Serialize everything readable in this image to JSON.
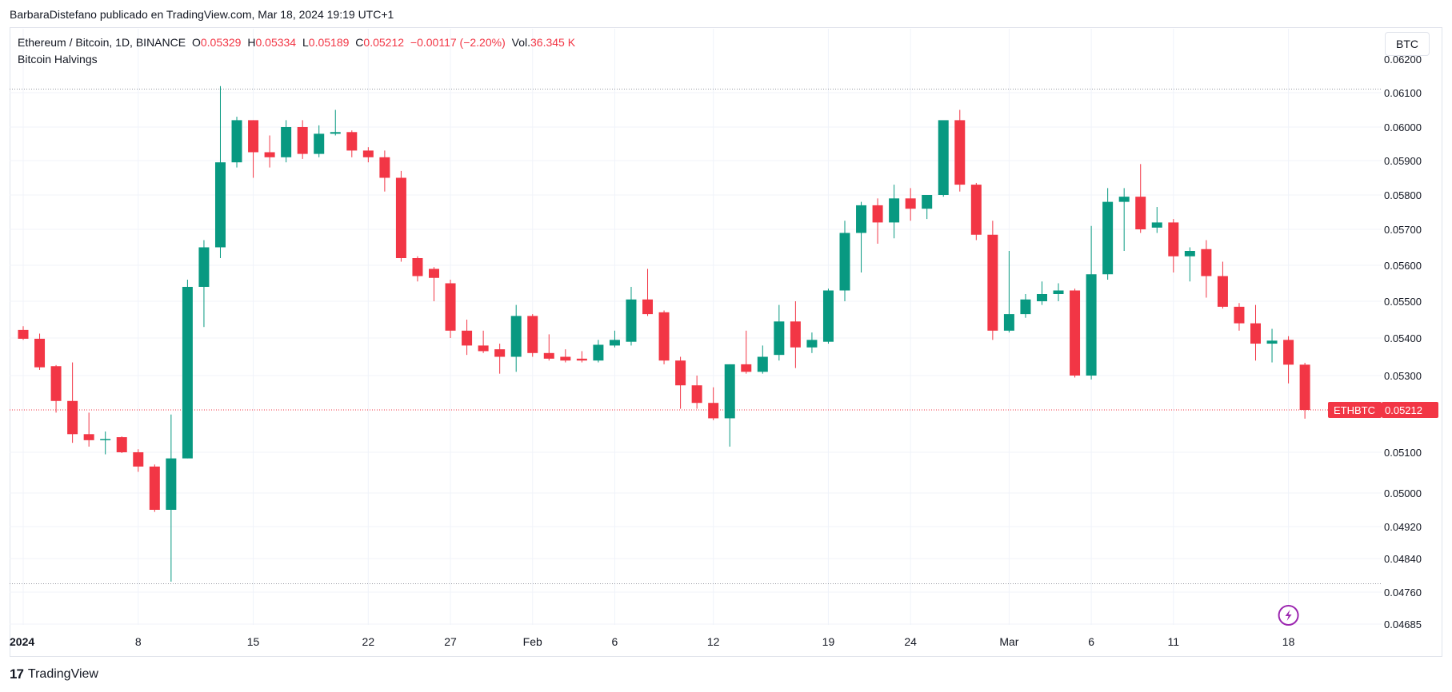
{
  "header": {
    "attribution": "BarbaraDistefano publicado en TradingView.com, Mar 18, 2024 19:19 UTC+1"
  },
  "legend": {
    "symbol": "Ethereum / Bitcoin, 1D, BINANCE",
    "o_label": "O",
    "o_value": "0.05329",
    "h_label": "H",
    "h_value": "0.05334",
    "l_label": "L",
    "l_value": "0.05189",
    "c_label": "C",
    "c_value": "0.05212",
    "change": "−0.00117 (−2.20%)",
    "vol_label": "Vol.",
    "vol_value": "36.345 K",
    "indicator": "Bitcoin Halvings"
  },
  "currency_button": "BTC",
  "footer": {
    "brand": "TradingView",
    "logo": "17"
  },
  "colors": {
    "up": "#089981",
    "down": "#f23645",
    "grid": "#f0f3fa",
    "dotted": "#9598a1",
    "halving_icon": "#9c27b0"
  },
  "icons": {
    "halving": "lightning-icon"
  },
  "chart_data": {
    "type": "candlestick",
    "symbol": "ETHBTC",
    "last_price": 0.05212,
    "last_price_label": "ETHBTC",
    "last_price_text": "0.05212",
    "y_ticks": [
      "0.06100",
      "0.06000",
      "0.05900",
      "0.05800",
      "0.05700",
      "0.05600",
      "0.05500",
      "0.05400",
      "0.05300",
      "0.05100",
      "0.05000",
      "0.04920",
      "0.04840",
      "0.04760",
      "0.04685"
    ],
    "y_tick_values": [
      0.061,
      0.06,
      0.059,
      0.058,
      0.057,
      0.056,
      0.055,
      0.054,
      0.053,
      0.051,
      0.05,
      0.0492,
      0.0484,
      0.0476,
      0.04685
    ],
    "y_partial_tick": "0.06200",
    "x_ticks": [
      {
        "label": "2024",
        "day": 0,
        "bold": true
      },
      {
        "label": "8",
        "day": 7
      },
      {
        "label": "15",
        "day": 14
      },
      {
        "label": "22",
        "day": 21
      },
      {
        "label": "27",
        "day": 26
      },
      {
        "label": "Feb",
        "day": 31
      },
      {
        "label": "6",
        "day": 36
      },
      {
        "label": "12",
        "day": 42
      },
      {
        "label": "19",
        "day": 49
      },
      {
        "label": "24",
        "day": 54
      },
      {
        "label": "Mar",
        "day": 60
      },
      {
        "label": "6",
        "day": 65
      },
      {
        "label": "11",
        "day": 70
      },
      {
        "label": "18",
        "day": 77
      }
    ],
    "range_high": 0.06111,
    "range_low": 0.0478,
    "candles": [
      {
        "o": 0.05422,
        "h": 0.05432,
        "l": 0.05395,
        "c": 0.05398
      },
      {
        "o": 0.05398,
        "h": 0.05412,
        "l": 0.05315,
        "c": 0.05322
      },
      {
        "o": 0.05325,
        "h": 0.05328,
        "l": 0.05205,
        "c": 0.05235
      },
      {
        "o": 0.05235,
        "h": 0.05335,
        "l": 0.05125,
        "c": 0.05148
      },
      {
        "o": 0.05148,
        "h": 0.05205,
        "l": 0.05115,
        "c": 0.05132
      },
      {
        "o": 0.05132,
        "h": 0.05155,
        "l": 0.05095,
        "c": 0.05135
      },
      {
        "o": 0.0514,
        "h": 0.05142,
        "l": 0.05098,
        "c": 0.051
      },
      {
        "o": 0.051,
        "h": 0.05108,
        "l": 0.05052,
        "c": 0.05065
      },
      {
        "o": 0.05065,
        "h": 0.0507,
        "l": 0.04955,
        "c": 0.0496
      },
      {
        "o": 0.0496,
        "h": 0.052,
        "l": 0.04785,
        "c": 0.05085
      },
      {
        "o": 0.05085,
        "h": 0.0556,
        "l": 0.05085,
        "c": 0.0554
      },
      {
        "o": 0.0554,
        "h": 0.0567,
        "l": 0.0543,
        "c": 0.0565
      },
      {
        "o": 0.0565,
        "h": 0.0612,
        "l": 0.0562,
        "c": 0.05895
      },
      {
        "o": 0.05895,
        "h": 0.0603,
        "l": 0.0588,
        "c": 0.0602
      },
      {
        "o": 0.0602,
        "h": 0.0602,
        "l": 0.0585,
        "c": 0.05925
      },
      {
        "o": 0.05925,
        "h": 0.05975,
        "l": 0.0588,
        "c": 0.0591
      },
      {
        "o": 0.0591,
        "h": 0.0602,
        "l": 0.05895,
        "c": 0.06
      },
      {
        "o": 0.06,
        "h": 0.0602,
        "l": 0.05905,
        "c": 0.0592
      },
      {
        "o": 0.0592,
        "h": 0.06005,
        "l": 0.0591,
        "c": 0.0598
      },
      {
        "o": 0.0598,
        "h": 0.0605,
        "l": 0.05975,
        "c": 0.05985
      },
      {
        "o": 0.05985,
        "h": 0.0599,
        "l": 0.0591,
        "c": 0.0593
      },
      {
        "o": 0.0593,
        "h": 0.0594,
        "l": 0.05895,
        "c": 0.0591
      },
      {
        "o": 0.0591,
        "h": 0.0593,
        "l": 0.0581,
        "c": 0.0585
      },
      {
        "o": 0.0585,
        "h": 0.0587,
        "l": 0.0561,
        "c": 0.0562
      },
      {
        "o": 0.0562,
        "h": 0.05625,
        "l": 0.05555,
        "c": 0.0557
      },
      {
        "o": 0.0559,
        "h": 0.05595,
        "l": 0.055,
        "c": 0.05565
      },
      {
        "o": 0.0555,
        "h": 0.0556,
        "l": 0.054,
        "c": 0.0542
      },
      {
        "o": 0.0542,
        "h": 0.0545,
        "l": 0.05355,
        "c": 0.0538
      },
      {
        "o": 0.0538,
        "h": 0.0542,
        "l": 0.0536,
        "c": 0.05365
      },
      {
        "o": 0.0537,
        "h": 0.05385,
        "l": 0.05305,
        "c": 0.0535
      },
      {
        "o": 0.0535,
        "h": 0.0549,
        "l": 0.0531,
        "c": 0.0546
      },
      {
        "o": 0.0546,
        "h": 0.05465,
        "l": 0.0535,
        "c": 0.0536
      },
      {
        "o": 0.0536,
        "h": 0.0541,
        "l": 0.0534,
        "c": 0.05345
      },
      {
        "o": 0.0535,
        "h": 0.0537,
        "l": 0.05335,
        "c": 0.0534
      },
      {
        "o": 0.05345,
        "h": 0.05365,
        "l": 0.05335,
        "c": 0.0534
      },
      {
        "o": 0.0534,
        "h": 0.05395,
        "l": 0.05335,
        "c": 0.05382
      },
      {
        "o": 0.0538,
        "h": 0.0542,
        "l": 0.05375,
        "c": 0.05395
      },
      {
        "o": 0.0539,
        "h": 0.0554,
        "l": 0.0538,
        "c": 0.05505
      },
      {
        "o": 0.05505,
        "h": 0.0559,
        "l": 0.0546,
        "c": 0.05465
      },
      {
        "o": 0.0547,
        "h": 0.05475,
        "l": 0.0533,
        "c": 0.0534
      },
      {
        "o": 0.0534,
        "h": 0.0535,
        "l": 0.05215,
        "c": 0.05275
      },
      {
        "o": 0.05275,
        "h": 0.053,
        "l": 0.05215,
        "c": 0.0523
      },
      {
        "o": 0.0523,
        "h": 0.0527,
        "l": 0.05185,
        "c": 0.0519
      },
      {
        "o": 0.0519,
        "h": 0.0533,
        "l": 0.05115,
        "c": 0.0533
      },
      {
        "o": 0.0533,
        "h": 0.0542,
        "l": 0.05305,
        "c": 0.0531
      },
      {
        "o": 0.0531,
        "h": 0.0538,
        "l": 0.05305,
        "c": 0.0535
      },
      {
        "o": 0.05355,
        "h": 0.0549,
        "l": 0.0534,
        "c": 0.05445
      },
      {
        "o": 0.05445,
        "h": 0.055,
        "l": 0.0532,
        "c": 0.05375
      },
      {
        "o": 0.05375,
        "h": 0.05415,
        "l": 0.0536,
        "c": 0.05395
      },
      {
        "o": 0.0539,
        "h": 0.05535,
        "l": 0.05385,
        "c": 0.0553
      },
      {
        "o": 0.0553,
        "h": 0.05725,
        "l": 0.055,
        "c": 0.0569
      },
      {
        "o": 0.0569,
        "h": 0.0578,
        "l": 0.0558,
        "c": 0.0577
      },
      {
        "o": 0.0577,
        "h": 0.0579,
        "l": 0.0566,
        "c": 0.0572
      },
      {
        "o": 0.0572,
        "h": 0.0583,
        "l": 0.05675,
        "c": 0.0579
      },
      {
        "o": 0.0579,
        "h": 0.0582,
        "l": 0.05725,
        "c": 0.0576
      },
      {
        "o": 0.0576,
        "h": 0.058,
        "l": 0.0573,
        "c": 0.058
      },
      {
        "o": 0.058,
        "h": 0.0601,
        "l": 0.05795,
        "c": 0.0602
      },
      {
        "o": 0.0602,
        "h": 0.0605,
        "l": 0.0581,
        "c": 0.0583
      },
      {
        "o": 0.0583,
        "h": 0.05835,
        "l": 0.0567,
        "c": 0.05685
      },
      {
        "o": 0.05685,
        "h": 0.05725,
        "l": 0.05395,
        "c": 0.0542
      },
      {
        "o": 0.0542,
        "h": 0.0564,
        "l": 0.05415,
        "c": 0.05465
      },
      {
        "o": 0.05465,
        "h": 0.0552,
        "l": 0.05455,
        "c": 0.05505
      },
      {
        "o": 0.055,
        "h": 0.05555,
        "l": 0.0549,
        "c": 0.0552
      },
      {
        "o": 0.0552,
        "h": 0.0555,
        "l": 0.055,
        "c": 0.0553
      },
      {
        "o": 0.0553,
        "h": 0.05535,
        "l": 0.05295,
        "c": 0.053
      },
      {
        "o": 0.053,
        "h": 0.0571,
        "l": 0.0529,
        "c": 0.05575
      },
      {
        "o": 0.05575,
        "h": 0.0582,
        "l": 0.0556,
        "c": 0.0578
      },
      {
        "o": 0.0578,
        "h": 0.0582,
        "l": 0.0564,
        "c": 0.05795
      },
      {
        "o": 0.05795,
        "h": 0.0589,
        "l": 0.0569,
        "c": 0.057
      },
      {
        "o": 0.05705,
        "h": 0.05765,
        "l": 0.0569,
        "c": 0.0572
      },
      {
        "o": 0.0572,
        "h": 0.0573,
        "l": 0.0558,
        "c": 0.05625
      },
      {
        "o": 0.05625,
        "h": 0.0565,
        "l": 0.05555,
        "c": 0.0564
      },
      {
        "o": 0.05645,
        "h": 0.0567,
        "l": 0.0551,
        "c": 0.0557
      },
      {
        "o": 0.0557,
        "h": 0.0561,
        "l": 0.0548,
        "c": 0.05485
      },
      {
        "o": 0.05485,
        "h": 0.05495,
        "l": 0.0542,
        "c": 0.0544
      },
      {
        "o": 0.0544,
        "h": 0.0549,
        "l": 0.0534,
        "c": 0.05385
      },
      {
        "o": 0.05385,
        "h": 0.05425,
        "l": 0.05335,
        "c": 0.05393
      },
      {
        "o": 0.05395,
        "h": 0.05405,
        "l": 0.0528,
        "c": 0.05329
      },
      {
        "o": 0.05329,
        "h": 0.05334,
        "l": 0.05189,
        "c": 0.05212
      }
    ]
  }
}
